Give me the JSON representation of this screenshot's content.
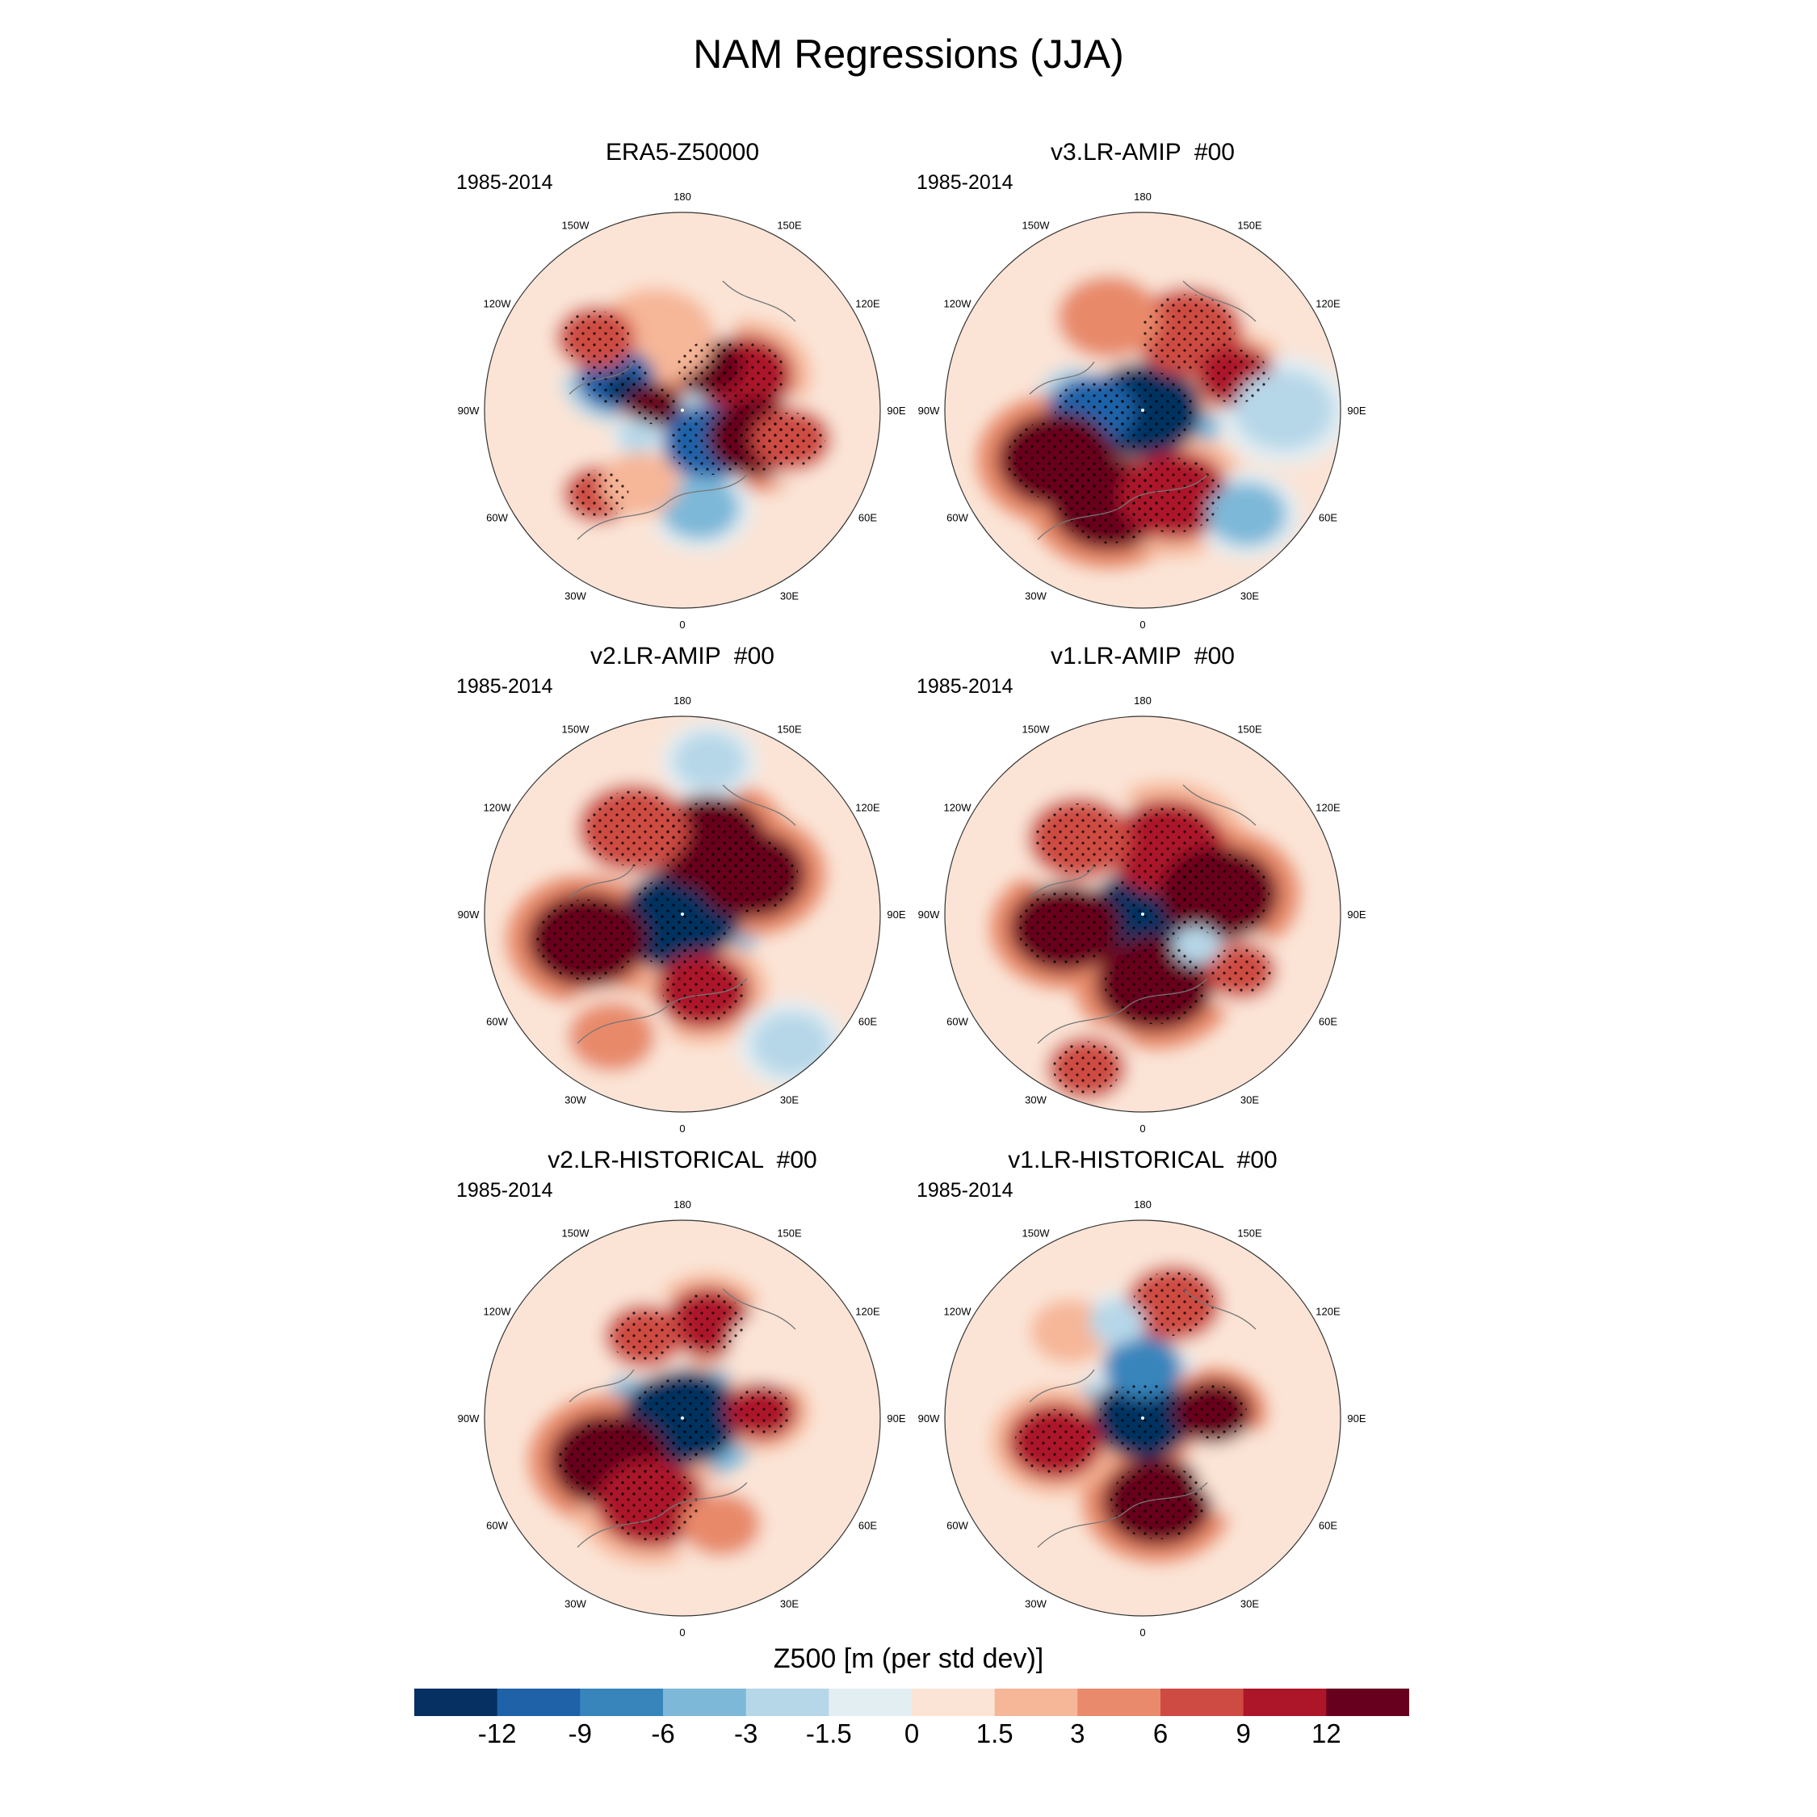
{
  "title": "NAM Regressions (JJA)",
  "period": "1985-2014",
  "longitude_labels": [
    "180",
    "150E",
    "120E",
    "90E",
    "60E",
    "30E",
    "0",
    "30W",
    "60W",
    "90W",
    "120W",
    "150W"
  ],
  "panels": [
    {
      "title": "ERA5-Z50000",
      "years": "1985-2014",
      "anomalies": [
        {
          "lon": 120,
          "lat": 65,
          "level": 10,
          "sw": 0.25
        },
        {
          "lon": 150,
          "lat": 72,
          "level": 11,
          "sw": 0.18
        },
        {
          "lon": -160,
          "lat": 62,
          "level": 7,
          "sw": 0.3
        },
        {
          "lon": -115,
          "lat": 64,
          "level": 1,
          "sw": 0.2
        },
        {
          "lon": -110,
          "lat": 68,
          "level": 0,
          "sw": 0.1
        },
        {
          "lon": -130,
          "lat": 50,
          "level": 9,
          "sw": 0.2
        },
        {
          "lon": -100,
          "lat": 80,
          "level": 11,
          "sw": 0.14
        },
        {
          "lon": 40,
          "lat": 75,
          "level": 1,
          "sw": 0.24
        },
        {
          "lon": 70,
          "lat": 62,
          "level": 11,
          "sw": 0.25
        },
        {
          "lon": 75,
          "lat": 50,
          "level": 9,
          "sw": 0.2
        },
        {
          "lon": -45,
          "lat": 48,
          "level": 9,
          "sw": 0.18
        },
        {
          "lon": 10,
          "lat": 55,
          "level": 3,
          "sw": 0.2
        },
        {
          "lon": -30,
          "lat": 60,
          "level": 7,
          "sw": 0.2
        },
        {
          "lon": -60,
          "lat": 72,
          "level": 4,
          "sw": 0.1
        }
      ]
    },
    {
      "title": "v3.LR-AMIP  #00",
      "years": "1985-2014",
      "anomalies": [
        {
          "lon": 0,
          "lat": 90,
          "level": 0,
          "sw": 0.3
        },
        {
          "lon": -90,
          "lat": 72,
          "level": 1,
          "sw": 0.22
        },
        {
          "lon": -60,
          "lat": 55,
          "level": 11,
          "sw": 0.3
        },
        {
          "lon": -20,
          "lat": 55,
          "level": 11,
          "sw": 0.3
        },
        {
          "lon": 20,
          "lat": 58,
          "level": 10,
          "sw": 0.28
        },
        {
          "lon": 150,
          "lat": 58,
          "level": 9,
          "sw": 0.28
        },
        {
          "lon": 110,
          "lat": 55,
          "level": 10,
          "sw": 0.2
        },
        {
          "lon": -160,
          "lat": 55,
          "level": 8,
          "sw": 0.26
        },
        {
          "lon": 45,
          "lat": 38,
          "level": 3,
          "sw": 0.2
        },
        {
          "lon": 90,
          "lat": 40,
          "level": 4,
          "sw": 0.25
        }
      ]
    },
    {
      "title": "v2.LR-AMIP  #00",
      "years": "1985-2014",
      "anomalies": [
        {
          "lon": 0,
          "lat": 90,
          "level": 0,
          "sw": 0.3
        },
        {
          "lon": -30,
          "lat": 80,
          "level": 0,
          "sw": 0.2
        },
        {
          "lon": 160,
          "lat": 63,
          "level": 11,
          "sw": 0.3
        },
        {
          "lon": 120,
          "lat": 62,
          "level": 11,
          "sw": 0.28
        },
        {
          "lon": -150,
          "lat": 55,
          "level": 9,
          "sw": 0.28
        },
        {
          "lon": -75,
          "lat": 55,
          "level": 11,
          "sw": 0.3
        },
        {
          "lon": 15,
          "lat": 62,
          "level": 10,
          "sw": 0.24
        },
        {
          "lon": 170,
          "lat": 35,
          "level": 4,
          "sw": 0.18
        },
        {
          "lon": 40,
          "lat": 30,
          "level": 4,
          "sw": 0.2
        },
        {
          "lon": -30,
          "lat": 40,
          "level": 8,
          "sw": 0.22
        }
      ]
    },
    {
      "title": "v1.LR-AMIP  #00",
      "years": "1985-2014",
      "anomalies": [
        {
          "lon": 0,
          "lat": 90,
          "level": 0,
          "sw": 0.28
        },
        {
          "lon": 160,
          "lat": 65,
          "level": 10,
          "sw": 0.3
        },
        {
          "lon": 105,
          "lat": 62,
          "level": 11,
          "sw": 0.3
        },
        {
          "lon": -80,
          "lat": 62,
          "level": 11,
          "sw": 0.28
        },
        {
          "lon": 10,
          "lat": 65,
          "level": 11,
          "sw": 0.3
        },
        {
          "lon": -140,
          "lat": 55,
          "level": 9,
          "sw": 0.26
        },
        {
          "lon": 60,
          "lat": 50,
          "level": 9,
          "sw": 0.18
        },
        {
          "lon": 60,
          "lat": 68,
          "level": 4,
          "sw": 0.12
        },
        {
          "lon": -20,
          "lat": 32,
          "level": 9,
          "sw": 0.2
        }
      ]
    },
    {
      "title": "v2.LR-HISTORICAL  #00",
      "years": "1985-2014",
      "anomalies": [
        {
          "lon": 0,
          "lat": 90,
          "level": 0,
          "sw": 0.3
        },
        {
          "lon": -20,
          "lat": 82,
          "level": 0,
          "sw": 0.18
        },
        {
          "lon": -60,
          "lat": 60,
          "level": 11,
          "sw": 0.3
        },
        {
          "lon": -20,
          "lat": 58,
          "level": 10,
          "sw": 0.28
        },
        {
          "lon": 165,
          "lat": 55,
          "level": 10,
          "sw": 0.22
        },
        {
          "lon": -155,
          "lat": 58,
          "level": 9,
          "sw": 0.2
        },
        {
          "lon": 95,
          "lat": 62,
          "level": 10,
          "sw": 0.18
        },
        {
          "lon": 20,
          "lat": 50,
          "level": 8,
          "sw": 0.2
        },
        {
          "lon": 130,
          "lat": 50,
          "level": 6,
          "sw": 0.2
        }
      ]
    },
    {
      "title": "v1.LR-HISTORICAL  #00",
      "years": "1985-2014",
      "anomalies": [
        {
          "lon": 0,
          "lat": 90,
          "level": 0,
          "sw": 0.26
        },
        {
          "lon": 180,
          "lat": 72,
          "level": 2,
          "sw": 0.2
        },
        {
          "lon": 95,
          "lat": 65,
          "level": 11,
          "sw": 0.2
        },
        {
          "lon": 10,
          "lat": 60,
          "level": 11,
          "sw": 0.28
        },
        {
          "lon": -75,
          "lat": 58,
          "level": 10,
          "sw": 0.24
        },
        {
          "lon": 165,
          "lat": 48,
          "level": 9,
          "sw": 0.24
        },
        {
          "lon": 60,
          "lat": 52,
          "level": 6,
          "sw": 0.2
        },
        {
          "lon": -140,
          "lat": 50,
          "level": 7,
          "sw": 0.2
        },
        {
          "lon": -165,
          "lat": 55,
          "level": 4,
          "sw": 0.14
        }
      ]
    }
  ],
  "colorbar": {
    "title": "Z500 [m (per std dev)]",
    "colors": [
      "#053061",
      "#1f62a8",
      "#3885bc",
      "#7db8d8",
      "#b6d7e8",
      "#e3eef3",
      "#fbe4d6",
      "#f6b698",
      "#e88a6b",
      "#ce4b43",
      "#ad1629",
      "#67001f"
    ],
    "tick_labels": [
      "-12",
      "-9",
      "-6",
      "-3",
      "-1.5",
      "0",
      "1.5",
      "3",
      "6",
      "9",
      "12"
    ]
  }
}
